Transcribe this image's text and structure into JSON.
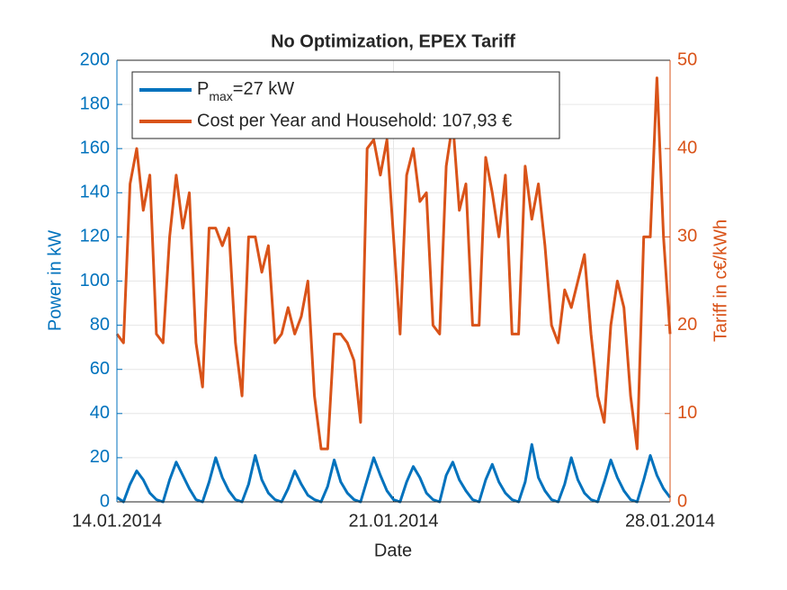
{
  "chart_data": {
    "type": "line",
    "title": "No Optimization, EPEX Tariff",
    "xlabel": "Date",
    "ylabel": "Power in kW",
    "y2label": "Tariff in c€/kWh",
    "xlim": [
      0,
      14
    ],
    "xticks": [
      {
        "value": 0,
        "label": "14.01.2014"
      },
      {
        "value": 7,
        "label": "21.01.2014"
      },
      {
        "value": 14,
        "label": "28.01.2014"
      }
    ],
    "ylim": [
      0,
      200
    ],
    "yticks": [
      0,
      20,
      40,
      60,
      80,
      100,
      120,
      140,
      160,
      180,
      200
    ],
    "y2lim": [
      0,
      50
    ],
    "y2ticks": [
      0,
      10,
      20,
      30,
      40,
      50
    ],
    "grid": true,
    "legend": "upper left",
    "x": [
      0,
      0.167,
      0.333,
      0.5,
      0.667,
      0.833,
      1,
      1.167,
      1.333,
      1.5,
      1.667,
      1.833,
      2,
      2.167,
      2.333,
      2.5,
      2.667,
      2.833,
      3,
      3.167,
      3.333,
      3.5,
      3.667,
      3.833,
      4,
      4.167,
      4.333,
      4.5,
      4.667,
      4.833,
      5,
      5.167,
      5.333,
      5.5,
      5.667,
      5.833,
      6,
      6.167,
      6.333,
      6.5,
      6.667,
      6.833,
      7,
      7.167,
      7.333,
      7.5,
      7.667,
      7.833,
      8,
      8.167,
      8.333,
      8.5,
      8.667,
      8.833,
      9,
      9.167,
      9.333,
      9.5,
      9.667,
      9.833,
      10,
      10.167,
      10.333,
      10.5,
      10.667,
      10.833,
      11,
      11.167,
      11.333,
      11.5,
      11.667,
      11.833,
      12,
      12.167,
      12.333,
      12.5,
      12.667,
      12.833,
      13,
      13.167,
      13.333,
      13.5,
      13.667,
      13.833,
      14
    ],
    "series": [
      {
        "name": "P",
        "name_sub": "max",
        "name_rest": "=27 kW",
        "color": "#0072BD",
        "values": [
          2,
          0,
          8,
          14,
          10,
          4,
          1,
          0,
          10,
          18,
          12,
          6,
          1,
          0,
          9,
          20,
          11,
          5,
          1,
          0,
          8,
          21,
          10,
          4,
          1,
          0,
          6,
          14,
          8,
          3,
          1,
          0,
          7,
          19,
          9,
          4,
          1,
          0,
          10,
          20,
          12,
          5,
          1,
          0,
          9,
          16,
          11,
          4,
          1,
          0,
          12,
          18,
          10,
          5,
          1,
          0,
          10,
          17,
          9,
          4,
          1,
          0,
          9,
          26,
          11,
          5,
          1,
          0,
          8,
          20,
          10,
          4,
          1,
          0,
          9,
          19,
          11,
          5,
          1,
          0,
          10,
          21,
          12,
          6,
          2
        ]
      },
      {
        "name": "Cost per Year and Household: 107,93 €",
        "color": "#D95319",
        "axis": "y2",
        "values": [
          19,
          18,
          36,
          40,
          33,
          37,
          19,
          18,
          30,
          37,
          31,
          35,
          18,
          13,
          31,
          31,
          29,
          31,
          18,
          12,
          30,
          30,
          26,
          29,
          18,
          19,
          22,
          19,
          21,
          25,
          12,
          6,
          6,
          19,
          19,
          18,
          16,
          9,
          40,
          41,
          37,
          41,
          30,
          19,
          37,
          40,
          34,
          35,
          20,
          19,
          38,
          43,
          33,
          36,
          20,
          20,
          39,
          35,
          30,
          37,
          19,
          19,
          38,
          32,
          36,
          29,
          20,
          18,
          24,
          22,
          25,
          28,
          19,
          12,
          9,
          20,
          25,
          22,
          12,
          6,
          30,
          30,
          48,
          30,
          19
        ]
      }
    ]
  }
}
